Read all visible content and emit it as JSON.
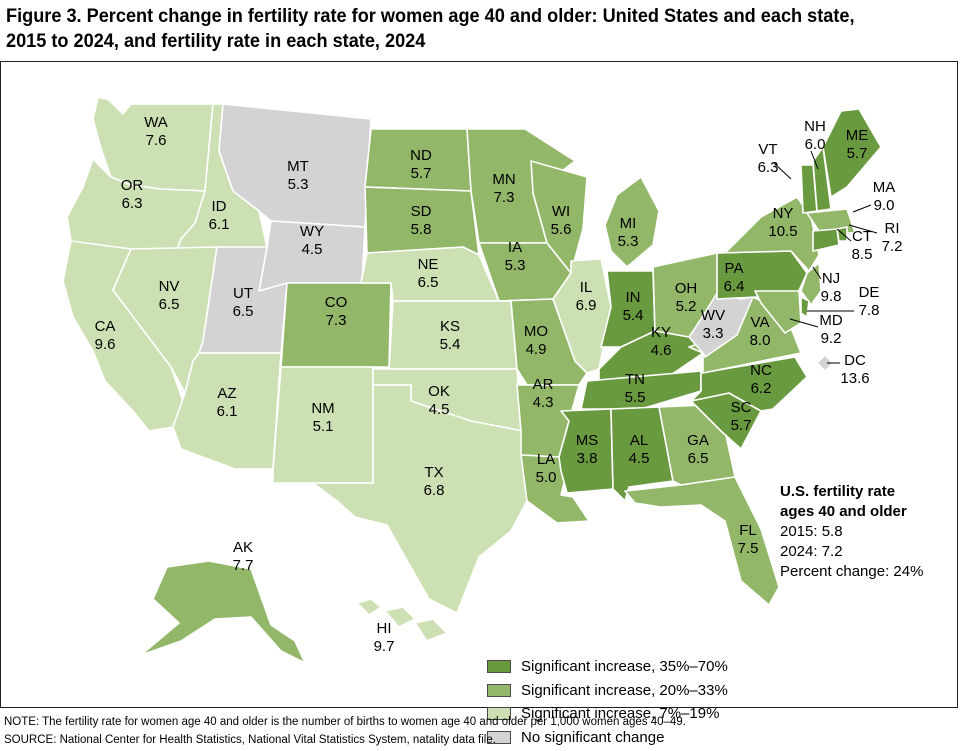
{
  "title_line1": "Figure 3. Percent change in fertility rate for women age 40 and older: United States and each state,",
  "title_line2": "2015 to 2024, and fertility rate in each state, 2024",
  "colors": {
    "high": "#6a9a3f",
    "mid": "#92b768",
    "low": "#cde0b3",
    "none": "#d3d3d3",
    "border": "#ffffff"
  },
  "states": {
    "WA": {
      "name": "WA",
      "rate": "7.6",
      "cat": "low"
    },
    "OR": {
      "name": "OR",
      "rate": "6.3",
      "cat": "low"
    },
    "CA": {
      "name": "CA",
      "rate": "9.6",
      "cat": "low"
    },
    "ID": {
      "name": "ID",
      "rate": "6.1",
      "cat": "low"
    },
    "NV": {
      "name": "NV",
      "rate": "6.5",
      "cat": "low"
    },
    "MT": {
      "name": "MT",
      "rate": "5.3",
      "cat": "none"
    },
    "WY": {
      "name": "WY",
      "rate": "4.5",
      "cat": "none"
    },
    "UT": {
      "name": "UT",
      "rate": "6.5",
      "cat": "none"
    },
    "AZ": {
      "name": "AZ",
      "rate": "6.1",
      "cat": "low"
    },
    "CO": {
      "name": "CO",
      "rate": "7.3",
      "cat": "mid"
    },
    "NM": {
      "name": "NM",
      "rate": "5.1",
      "cat": "low"
    },
    "ND": {
      "name": "ND",
      "rate": "5.7",
      "cat": "mid"
    },
    "SD": {
      "name": "SD",
      "rate": "5.8",
      "cat": "mid"
    },
    "NE": {
      "name": "NE",
      "rate": "6.5",
      "cat": "low"
    },
    "KS": {
      "name": "KS",
      "rate": "5.4",
      "cat": "low"
    },
    "OK": {
      "name": "OK",
      "rate": "4.5",
      "cat": "low"
    },
    "TX": {
      "name": "TX",
      "rate": "6.8",
      "cat": "low"
    },
    "MN": {
      "name": "MN",
      "rate": "7.3",
      "cat": "mid"
    },
    "IA": {
      "name": "IA",
      "rate": "5.3",
      "cat": "mid"
    },
    "MO": {
      "name": "MO",
      "rate": "4.9",
      "cat": "mid"
    },
    "AR": {
      "name": "AR",
      "rate": "4.3",
      "cat": "mid"
    },
    "LA": {
      "name": "LA",
      "rate": "5.0",
      "cat": "mid"
    },
    "WI": {
      "name": "WI",
      "rate": "5.6",
      "cat": "mid"
    },
    "IL": {
      "name": "IL",
      "rate": "6.9",
      "cat": "low"
    },
    "MI": {
      "name": "MI",
      "rate": "5.3",
      "cat": "mid"
    },
    "IN": {
      "name": "IN",
      "rate": "5.4",
      "cat": "high"
    },
    "OH": {
      "name": "OH",
      "rate": "5.2",
      "cat": "mid"
    },
    "KY": {
      "name": "KY",
      "rate": "4.6",
      "cat": "high"
    },
    "TN": {
      "name": "TN",
      "rate": "5.5",
      "cat": "high"
    },
    "MS": {
      "name": "MS",
      "rate": "3.8",
      "cat": "high"
    },
    "AL": {
      "name": "AL",
      "rate": "4.5",
      "cat": "high"
    },
    "GA": {
      "name": "GA",
      "rate": "6.5",
      "cat": "mid"
    },
    "FL": {
      "name": "FL",
      "rate": "7.5",
      "cat": "mid"
    },
    "SC": {
      "name": "SC",
      "rate": "5.7",
      "cat": "high"
    },
    "NC": {
      "name": "NC",
      "rate": "6.2",
      "cat": "high"
    },
    "VA": {
      "name": "VA",
      "rate": "8.0",
      "cat": "mid"
    },
    "WV": {
      "name": "WV",
      "rate": "3.3",
      "cat": "none"
    },
    "PA": {
      "name": "PA",
      "rate": "6.4",
      "cat": "high"
    },
    "NY": {
      "name": "NY",
      "rate": "10.5",
      "cat": "mid"
    },
    "VT": {
      "name": "VT",
      "rate": "6.3",
      "cat": "high"
    },
    "NH": {
      "name": "NH",
      "rate": "6.0",
      "cat": "high"
    },
    "ME": {
      "name": "ME",
      "rate": "5.7",
      "cat": "high"
    },
    "MA": {
      "name": "MA",
      "rate": "9.0",
      "cat": "mid"
    },
    "RI": {
      "name": "RI",
      "rate": "7.2",
      "cat": "high"
    },
    "CT": {
      "name": "CT",
      "rate": "8.5",
      "cat": "high"
    },
    "NJ": {
      "name": "NJ",
      "rate": "9.8",
      "cat": "mid"
    },
    "DE": {
      "name": "DE",
      "rate": "7.8",
      "cat": "high"
    },
    "MD": {
      "name": "MD",
      "rate": "9.2",
      "cat": "mid"
    },
    "DC": {
      "name": "DC",
      "rate": "13.6",
      "cat": "none"
    },
    "AK": {
      "name": "AK",
      "rate": "7.7",
      "cat": "mid"
    },
    "HI": {
      "name": "HI",
      "rate": "9.7",
      "cat": "low"
    }
  },
  "us_summary": {
    "heading_line1": "U.S. fertility rate",
    "heading_line2": "ages 40 and older",
    "rate_2015": "2015: 5.8",
    "rate_2024": "2024: 7.2",
    "percent_change": "Percent change: 24%"
  },
  "legend": [
    {
      "label": "Significant increase, 35%–70%",
      "color": "#6a9a3f"
    },
    {
      "label": "Significant increase, 20%–33%",
      "color": "#92b768"
    },
    {
      "label": "Significant increase, 7%–19%",
      "color": "#cde0b3"
    },
    {
      "label": "No significant change",
      "color": "#d3d3d3"
    }
  ],
  "note": "NOTE: The fertility rate for women age 40 and older is the number of births to women age 40 and older per 1,000 women ages 40–49.",
  "source": "SOURCE: National Center for Health Statistics, National Vital Statistics System, natality data file."
}
